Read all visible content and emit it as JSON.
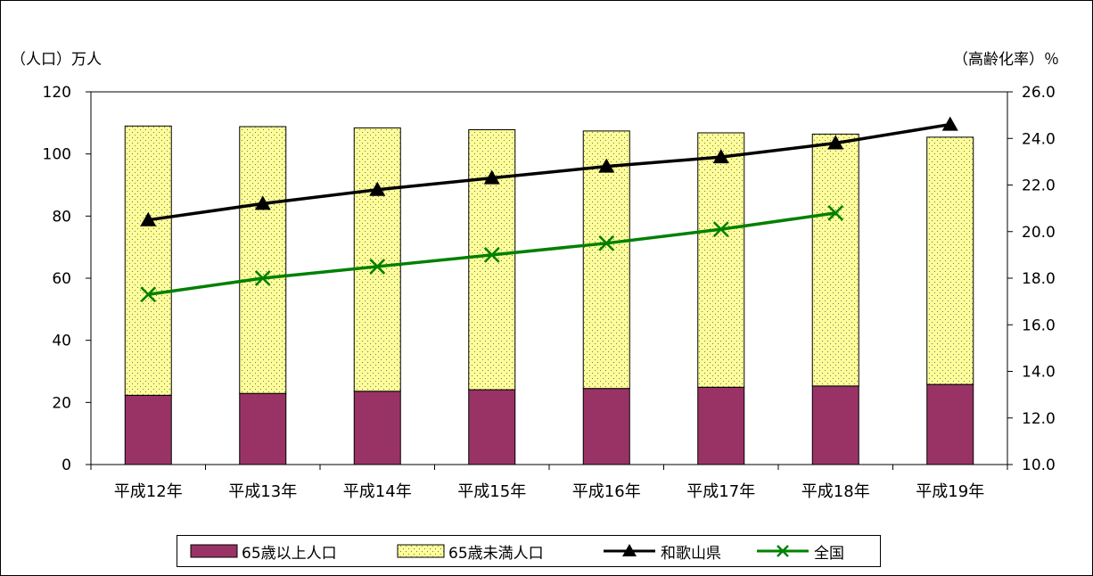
{
  "chart_data": {
    "type": "bar",
    "stacked": true,
    "categories": [
      "平成12年",
      "平成13年",
      "平成14年",
      "平成15年",
      "平成16年",
      "平成17年",
      "平成18年",
      "平成19年"
    ],
    "series": [
      {
        "name": "65歳以上人口",
        "type": "bar",
        "axis": "left",
        "color": "#993366",
        "values": [
          22.3,
          22.9,
          23.6,
          24.1,
          24.5,
          24.9,
          25.3,
          25.8
        ]
      },
      {
        "name": "65歳未満人口",
        "type": "bar",
        "axis": "left",
        "color": "#ffff99",
        "values": [
          86.7,
          85.9,
          84.8,
          83.7,
          82.9,
          81.9,
          81.1,
          79.6
        ]
      },
      {
        "name": "和歌山県",
        "type": "line",
        "axis": "right",
        "color": "#000000",
        "marker": "triangle",
        "values": [
          20.5,
          21.2,
          21.8,
          22.3,
          22.8,
          23.2,
          23.8,
          24.6
        ]
      },
      {
        "name": "全国",
        "type": "line",
        "axis": "right",
        "color": "#008000",
        "marker": "x",
        "values": [
          17.3,
          18.0,
          18.5,
          19.0,
          19.5,
          20.1,
          20.8,
          null
        ]
      }
    ],
    "ylabel_left": "（人口）万人",
    "ylabel_right": "（高齢化率）％",
    "ylim_left": [
      0,
      120
    ],
    "yticks_left": [
      "0",
      "20",
      "40",
      "60",
      "80",
      "100",
      "120"
    ],
    "ylim_right": [
      10.0,
      26.0
    ],
    "yticks_right": [
      "10.0",
      "12.0",
      "14.0",
      "16.0",
      "18.0",
      "20.0",
      "22.0",
      "24.0",
      "26.0"
    ],
    "grid": false,
    "legend_position": "bottom"
  }
}
